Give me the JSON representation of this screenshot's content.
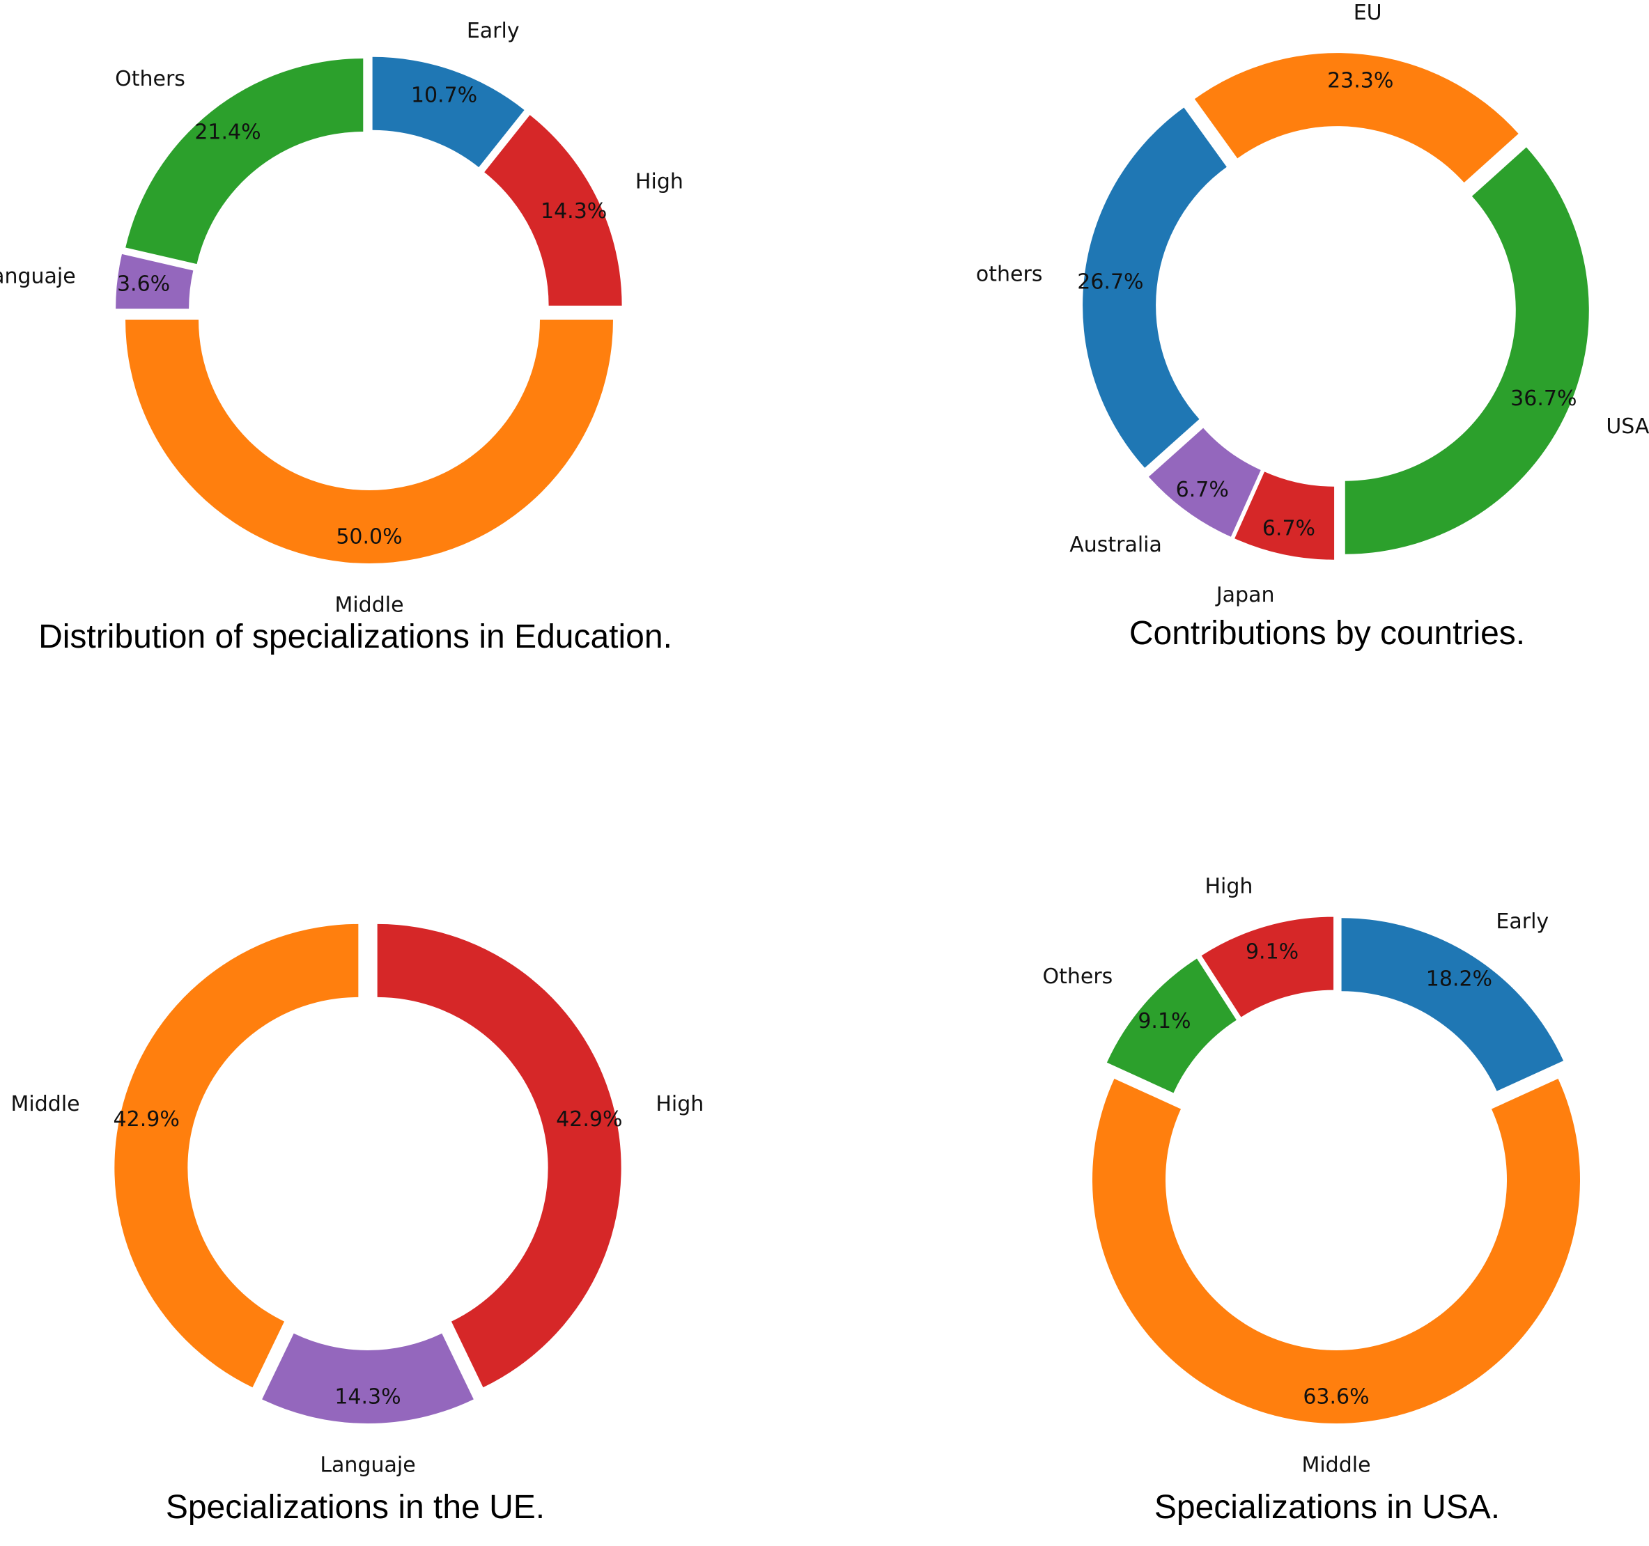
{
  "chart_data": [
    {
      "type": "pie",
      "title": "Distribution of specializations in Education.",
      "slices": [
        {
          "label": "Middle",
          "value": 50.0,
          "pct_label": "50.0%",
          "color": "#ff7f0e"
        },
        {
          "label": "High",
          "value": 14.3,
          "pct_label": "14.3%",
          "color": "#d62728"
        },
        {
          "label": "Early",
          "value": 10.7,
          "pct_label": "10.7%",
          "color": "#1f77b4"
        },
        {
          "label": "Others",
          "value": 21.4,
          "pct_label": "21.4%",
          "color": "#2ca02c"
        },
        {
          "label": "Languaje",
          "value": 3.6,
          "pct_label": "3.6%",
          "color": "#9467bd"
        }
      ]
    },
    {
      "type": "pie",
      "title": "Contributions by countries.",
      "slices": [
        {
          "label": "USA",
          "value": 36.7,
          "pct_label": "36.7%",
          "color": "#2ca02c"
        },
        {
          "label": "EU",
          "value": 23.3,
          "pct_label": "23.3%",
          "color": "#ff7f0e"
        },
        {
          "label": "others",
          "value": 26.7,
          "pct_label": "26.7%",
          "color": "#1f77b4"
        },
        {
          "label": "Australia",
          "value": 6.7,
          "pct_label": "6.7%",
          "color": "#9467bd"
        },
        {
          "label": "Japan",
          "value": 6.7,
          "pct_label": "6.7%",
          "color": "#d62728"
        }
      ]
    },
    {
      "type": "pie",
      "title": "Specializations in the UE.",
      "slices": [
        {
          "label": "Middle",
          "value": 42.9,
          "pct_label": "42.9%",
          "color": "#ff7f0e"
        },
        {
          "label": "Languaje",
          "value": 14.3,
          "pct_label": "14.3%",
          "color": "#9467bd"
        },
        {
          "label": "High",
          "value": 42.9,
          "pct_label": "42.9%",
          "color": "#d62728"
        }
      ]
    },
    {
      "type": "pie",
      "title": "Specializations in USA.",
      "slices": [
        {
          "label": "High",
          "value": 9.1,
          "pct_label": "9.1%",
          "color": "#d62728"
        },
        {
          "label": "Others",
          "value": 9.1,
          "pct_label": "9.1%",
          "color": "#2ca02c"
        },
        {
          "label": "Middle",
          "value": 63.6,
          "pct_label": "63.6%",
          "color": "#ff7f0e"
        },
        {
          "label": "Early",
          "value": 18.2,
          "pct_label": "18.2%",
          "color": "#1f77b4"
        }
      ]
    }
  ]
}
